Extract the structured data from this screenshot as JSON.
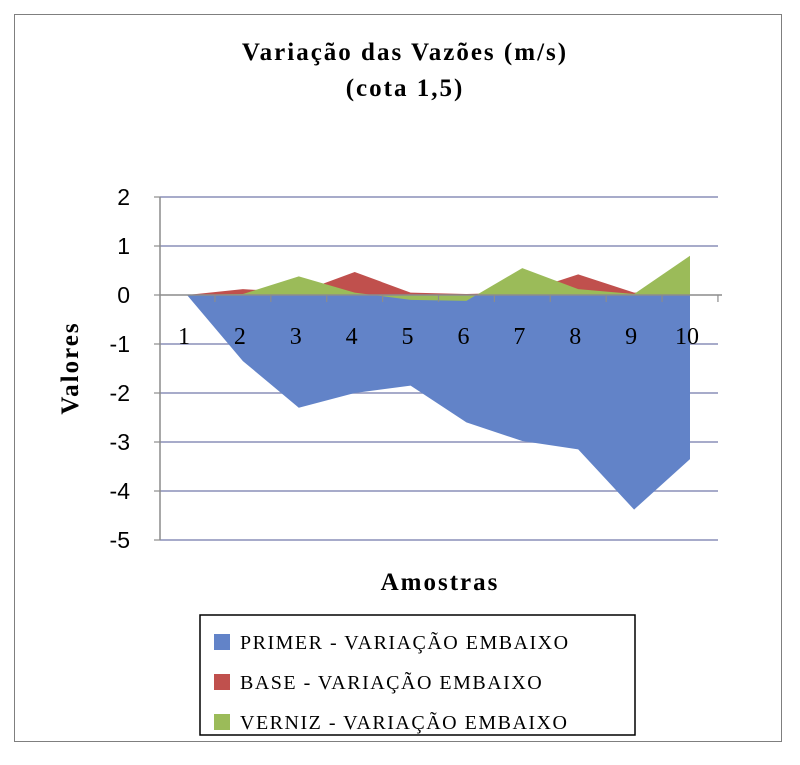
{
  "chart_data": {
    "type": "area",
    "title_line1": "Variação das Vazões (m/s)",
    "title_line2": "(cota 1,5)",
    "xlabel": "Amostras",
    "ylabel": "Valores",
    "ylim": [
      -5,
      2
    ],
    "y_ticks": [
      2,
      1,
      0,
      -1,
      -2,
      -3,
      -4,
      -5
    ],
    "categories": [
      "1",
      "2",
      "3",
      "4",
      "5",
      "6",
      "7",
      "8",
      "9",
      "10"
    ],
    "grid": true,
    "legend_position": "bottom",
    "series": [
      {
        "name": "PRIMER - VARIAÇÃO EMBAIXO",
        "color": "#6283c8",
        "values": [
          0,
          -1.35,
          -2.3,
          -2.0,
          -1.85,
          -2.6,
          -2.98,
          -3.15,
          -4.38,
          -3.35
        ]
      },
      {
        "name": "BASE - VARIAÇÃO EMBAIXO",
        "color": "#c0504d",
        "values": [
          0,
          0.12,
          0.05,
          0.47,
          0.05,
          0.02,
          0.05,
          0.42,
          0.05,
          0.05
        ]
      },
      {
        "name": "VERNIZ - VARIAÇÃO EMBAIXO",
        "color": "#9bbb59",
        "values": [
          0,
          0.02,
          0.38,
          0.05,
          -0.1,
          -0.12,
          0.55,
          0.12,
          0.02,
          0.8
        ]
      }
    ]
  }
}
